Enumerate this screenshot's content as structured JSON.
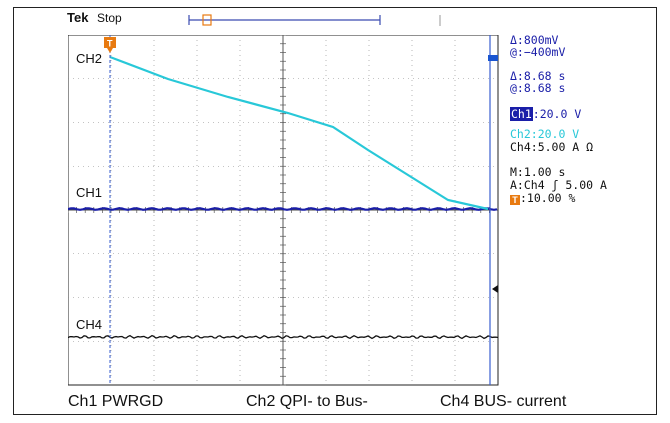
{
  "header": {
    "brand": "Tek",
    "status": "Stop"
  },
  "channels": {
    "ch1_marker": "CH1",
    "ch2_marker": "CH2",
    "ch4_marker": "CH4"
  },
  "readout": {
    "delta_v": "Δ:800mV",
    "at_v": "@:−400mV",
    "delta_t": "Δ:8.68 s",
    "at_t": "@:8.68 s",
    "ch1_name": "Ch1",
    "ch1_scale": ":20.0 V",
    "ch2_scale": "Ch2:20.0 V",
    "ch4_scale": "Ch4:5.00 A Ω",
    "timebase": "M:1.00 s",
    "trigger": "A:Ch4 ʃ 5.00 A",
    "trigger_pos": ":10.00 %"
  },
  "captions": {
    "ch1": "Ch1 PWRGD",
    "ch2": "Ch2 QPI- to Bus-",
    "ch4": "Ch4 BUS- current"
  },
  "colors": {
    "ch1": "#1a1ea8",
    "ch2": "#28c8d8",
    "ch4": "#111111",
    "trigger": "#e87a10",
    "cursor": "#3a5fd0"
  }
}
